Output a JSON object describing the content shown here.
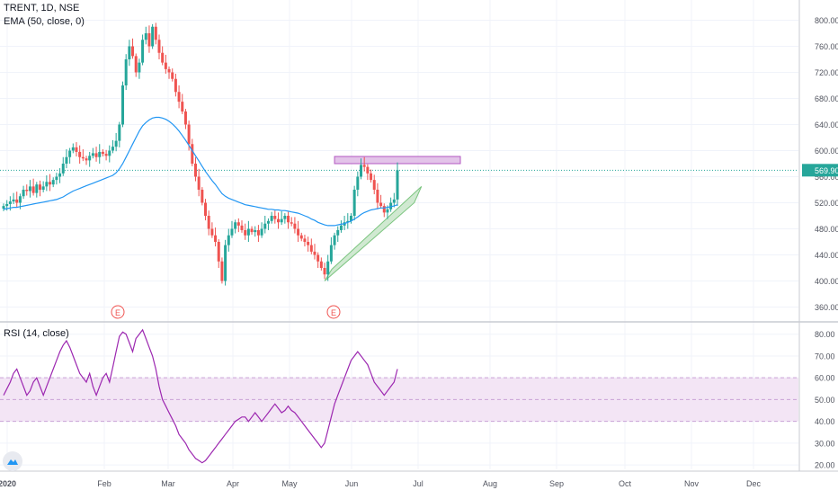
{
  "legend": {
    "symbol_line": "TRENT, 1D, NSE",
    "ema_line": "EMA (50, close, 0)",
    "rsi_line": "RSI (14, close)"
  },
  "colors": {
    "up": "#26a69a",
    "down": "#ef5350",
    "ema": "#2196f3",
    "rsi_line": "#9c27b0",
    "rsi_band": "#f3e5f5",
    "resistance": "#e1bee7",
    "trend_channel": "#c8e6c9",
    "last_price_line": "#26a69a",
    "grid": "#f0f3fa"
  },
  "chart_data": [
    {
      "type": "candlestick",
      "title": "TRENT, 1D, NSE",
      "overlays": [
        "EMA (50, close, 0)"
      ],
      "y_ticks": [
        "800.00",
        "760.00",
        "720.00",
        "680.00",
        "640.00",
        "600.00",
        "560.00",
        "520.00",
        "480.00",
        "440.00",
        "400.00",
        "360.00"
      ],
      "ylim": [
        340,
        820
      ],
      "last_price_label": "569.90",
      "x_ticks": [
        "2020",
        "Feb",
        "Mar",
        "Apr",
        "May",
        "Jun",
        "Jul",
        "Aug",
        "Sep",
        "Oct",
        "Nov",
        "Dec"
      ],
      "earnings_markers": [
        "E",
        "E"
      ],
      "closes": [
        515,
        518,
        522,
        525,
        520,
        530,
        540,
        538,
        545,
        535,
        548,
        540,
        545,
        552,
        548,
        555,
        560,
        565,
        580,
        590,
        600,
        605,
        598,
        590,
        588,
        585,
        592,
        596,
        590,
        598,
        595,
        592,
        600,
        606,
        615,
        640,
        700,
        740,
        760,
        745,
        720,
        735,
        770,
        780,
        760,
        790,
        770,
        750,
        735,
        725,
        720,
        710,
        690,
        675,
        660,
        640,
        610,
        580,
        560,
        540,
        520,
        500,
        480,
        470,
        460,
        430,
        400,
        455,
        470,
        480,
        490,
        485,
        478,
        470,
        480,
        475,
        478,
        470,
        480,
        488,
        492,
        500,
        495,
        490,
        495,
        500,
        490,
        488,
        480,
        470,
        465,
        460,
        455,
        445,
        440,
        430,
        420,
        410,
        430,
        455,
        470,
        478,
        485,
        490,
        492,
        500,
        540,
        560,
        578,
        575,
        565,
        555,
        540,
        520,
        515,
        505,
        510,
        520,
        525,
        569.9
      ],
      "ema": [
        510,
        511,
        512,
        513,
        513,
        514,
        515,
        516,
        517,
        518,
        519,
        520,
        521,
        522,
        523,
        524,
        525,
        527,
        529,
        532,
        535,
        538,
        540,
        542,
        544,
        546,
        548,
        550,
        552,
        554,
        556,
        558,
        560,
        562,
        566,
        572,
        580,
        590,
        600,
        610,
        620,
        630,
        638,
        643,
        647,
        650,
        651,
        651,
        650,
        648,
        645,
        641,
        636,
        630,
        623,
        616,
        608,
        600,
        592,
        584,
        576,
        568,
        561,
        554,
        548,
        541,
        534,
        530,
        527,
        525,
        523,
        521,
        519,
        517,
        516,
        515,
        514,
        513,
        512,
        511,
        510,
        510,
        509,
        509,
        508,
        508,
        507,
        506,
        505,
        504,
        502,
        500,
        498,
        495,
        493,
        490,
        488,
        486,
        485,
        485,
        485,
        486,
        487,
        488,
        490,
        492,
        495,
        498,
        502,
        505,
        507,
        509,
        510,
        511,
        512,
        512,
        513,
        514,
        515,
        517
      ],
      "resistance_zone": [
        580,
        591
      ],
      "trend_channel": {
        "start": [
          400,
          418
        ],
        "end": [
          520,
          545
        ]
      }
    },
    {
      "type": "line",
      "title": "RSI (14, close)",
      "series": [
        {
          "name": "RSI (14, close)",
          "values": [
            52,
            55,
            58,
            62,
            64,
            60,
            56,
            52,
            54,
            58,
            60,
            56,
            52,
            56,
            60,
            64,
            68,
            72,
            75,
            77,
            74,
            70,
            66,
            62,
            60,
            58,
            62,
            56,
            52,
            56,
            60,
            62,
            58,
            65,
            72,
            79,
            81,
            80,
            76,
            72,
            78,
            80,
            82,
            78,
            74,
            70,
            64,
            56,
            50,
            47,
            44,
            41,
            38,
            34,
            32,
            30,
            27,
            25,
            23,
            22,
            21,
            22,
            24,
            26,
            28,
            30,
            32,
            34,
            36,
            38,
            40,
            41,
            42,
            42,
            40,
            42,
            44,
            42,
            40,
            42,
            44,
            46,
            48,
            46,
            44,
            45,
            47,
            45,
            44,
            42,
            40,
            38,
            36,
            34,
            32,
            30,
            28,
            30,
            36,
            42,
            48,
            52,
            56,
            60,
            64,
            68,
            70,
            72,
            70,
            68,
            66,
            62,
            58,
            56,
            54,
            52,
            54,
            56,
            58,
            64
          ]
        }
      ],
      "y_ticks": [
        "80.00",
        "70.00",
        "60.00",
        "50.00",
        "40.00",
        "30.00",
        "20.00"
      ],
      "ylim": [
        18,
        84
      ],
      "band": [
        40,
        60
      ],
      "x_ticks": [
        "2020",
        "Feb",
        "Mar",
        "Apr",
        "May",
        "Jun",
        "Jul",
        "Aug",
        "Sep",
        "Oct",
        "Nov",
        "Dec"
      ]
    }
  ]
}
